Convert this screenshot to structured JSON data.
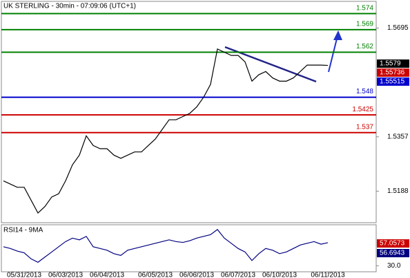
{
  "header": {
    "title": "UK STERLING - 30min - 07:09:06 (UTC+1)"
  },
  "chart_data": [
    {
      "type": "line",
      "ylim": [
        1.509,
        1.5778
      ],
      "yticks": [
        1.5695,
        1.5357,
        1.5188
      ],
      "categories": [
        null,
        null,
        null,
        "05/31/2013",
        null,
        null,
        null,
        null,
        null,
        "06/03/2013",
        null,
        null,
        null,
        null,
        null,
        "06/04/2013",
        null,
        null,
        null,
        null,
        null,
        null,
        "06/05/2013",
        null,
        null,
        null,
        null,
        null,
        "06/06/2013",
        null,
        null,
        null,
        null,
        null,
        "06/07/2013",
        null,
        null,
        null,
        null,
        null,
        "06/10/2013",
        null,
        null,
        null,
        null,
        null,
        null,
        "06/11/2013"
      ],
      "series": [
        {
          "color": "#000000",
          "values": [
            1.522,
            1.521,
            1.52,
            1.52,
            1.516,
            1.512,
            1.514,
            1.517,
            1.518,
            1.522,
            1.527,
            1.53,
            1.536,
            1.533,
            1.532,
            1.532,
            1.53,
            1.529,
            1.53,
            1.531,
            1.531,
            1.533,
            1.535,
            1.538,
            1.541,
            1.541,
            1.542,
            1.543,
            1.545,
            1.548,
            1.552,
            1.563,
            1.562,
            1.561,
            1.561,
            1.559,
            1.553,
            1.555,
            1.556,
            1.554,
            1.553,
            1.553,
            1.554,
            1.556,
            1.558,
            1.558,
            1.558,
            1.5579
          ]
        }
      ],
      "levels": [
        {
          "value": 1.574,
          "color": "#008000"
        },
        {
          "value": 1.569,
          "color": "#008000"
        },
        {
          "value": 1.562,
          "color": "#008000"
        },
        {
          "value": 1.548,
          "color": "#0000cc"
        },
        {
          "value": 1.5425,
          "color": "#cc0000"
        },
        {
          "value": 1.537,
          "color": "#cc0000"
        }
      ],
      "markers": [
        {
          "value": 1.5579,
          "color": "#000000"
        },
        {
          "value": 1.55736,
          "color": "#cc0000"
        },
        {
          "value": 1.55515,
          "color": "#0000cc"
        }
      ]
    },
    {
      "type": "line",
      "title": "RSI14 - 9MA",
      "ylim": [
        23,
        77.5
      ],
      "yticks": [
        {
          "value": 30,
          "label": "30.0"
        }
      ],
      "series": [
        {
          "color": "#000080",
          "values": [
            52,
            50,
            47,
            45,
            38,
            34,
            40,
            46,
            52,
            58,
            62,
            60,
            64,
            52,
            50,
            48,
            44,
            42,
            48,
            50,
            52,
            54,
            56,
            58,
            60,
            58,
            57,
            59,
            62,
            64,
            66,
            72,
            62,
            56,
            50,
            46,
            36,
            44,
            50,
            48,
            44,
            46,
            50,
            54,
            56,
            58,
            55,
            56.6943
          ]
        }
      ],
      "markers": [
        {
          "value": 57.0573,
          "color": "#cc0000"
        },
        {
          "value": 56.6943,
          "color": "#000080"
        }
      ]
    }
  ]
}
